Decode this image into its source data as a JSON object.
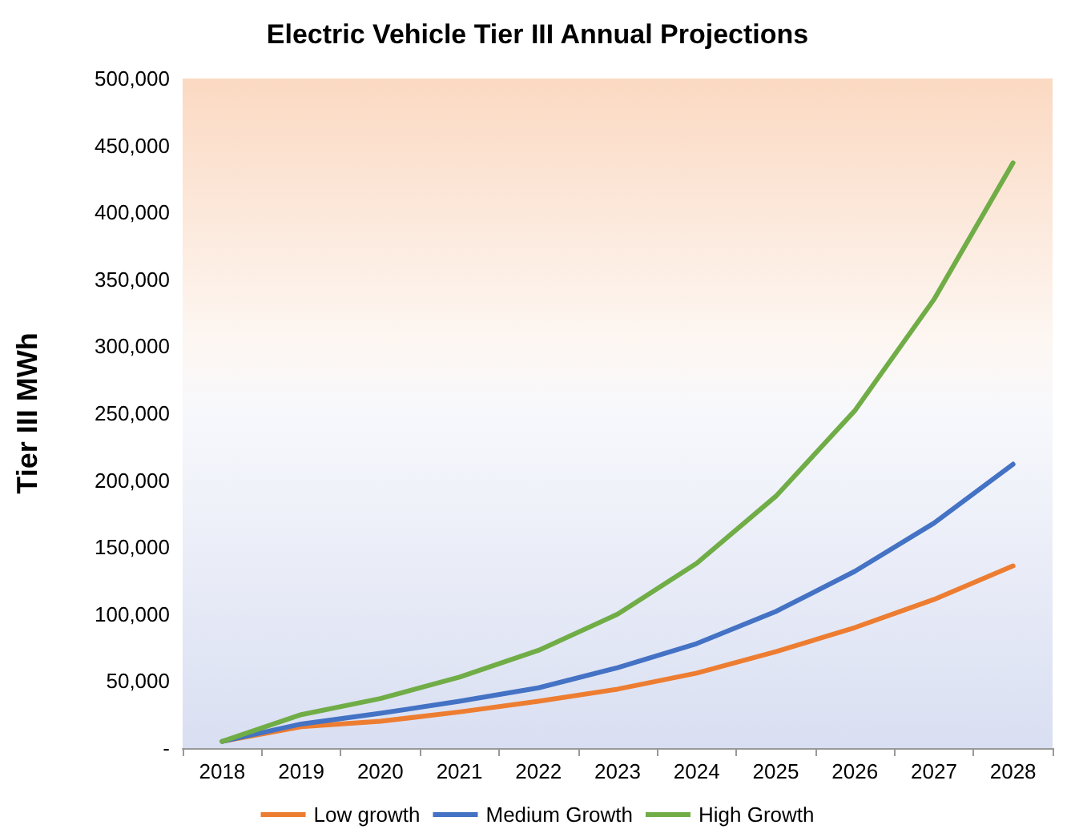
{
  "chart_data": {
    "type": "line",
    "title": "Electric Vehicle Tier III Annual Projections",
    "ylabel": "Tier III MWh",
    "categories": [
      "2018",
      "2019",
      "2020",
      "2021",
      "2022",
      "2023",
      "2024",
      "2025",
      "2026",
      "2027",
      "2028"
    ],
    "series": [
      {
        "name": "Low growth",
        "color": "#ed7d31",
        "values": [
          5000,
          16000,
          20000,
          27000,
          35000,
          44000,
          56000,
          72000,
          90000,
          111000,
          136000
        ]
      },
      {
        "name": "Medium Growth",
        "color": "#4472c4",
        "values": [
          5000,
          18000,
          26000,
          35000,
          45000,
          60000,
          78000,
          102000,
          132000,
          168000,
          212000
        ]
      },
      {
        "name": "High Growth",
        "color": "#70ad47",
        "values": [
          5000,
          25000,
          37000,
          53000,
          73000,
          100000,
          138000,
          188000,
          252000,
          335000,
          437000
        ]
      }
    ],
    "ylim": [
      0,
      500000
    ],
    "yticks": [
      {
        "value": 0,
        "label": "-"
      },
      {
        "value": 50000,
        "label": "50,000"
      },
      {
        "value": 100000,
        "label": "100,000"
      },
      {
        "value": 150000,
        "label": "150,000"
      },
      {
        "value": 200000,
        "label": "200,000"
      },
      {
        "value": 250000,
        "label": "250,000"
      },
      {
        "value": 300000,
        "label": "300,000"
      },
      {
        "value": 350000,
        "label": "350,000"
      },
      {
        "value": 400000,
        "label": "400,000"
      },
      {
        "value": 450000,
        "label": "450,000"
      },
      {
        "value": 500000,
        "label": "500,000"
      }
    ],
    "legend": "bottom",
    "marker": "none",
    "line_style": "solid",
    "grid": false
  }
}
